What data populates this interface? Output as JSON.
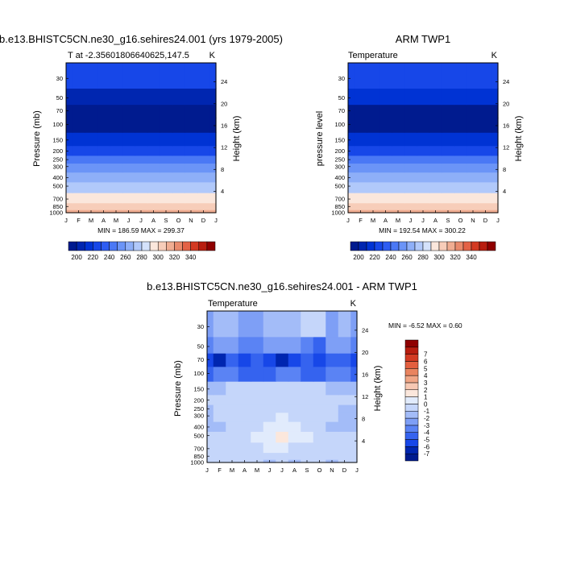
{
  "chart_data": [
    {
      "type": "heatmap",
      "title": "b.e13.BHISTC5CN.ne30_g16.sehires24.001 (yrs 1979-2005)",
      "subtitle_left": "T at -2.35601806640625,147.5",
      "units": "K",
      "ylabel": "Pressure (mb)",
      "ylabel_right": "Height (km)",
      "months": [
        "J",
        "F",
        "M",
        "A",
        "M",
        "J",
        "J",
        "A",
        "S",
        "O",
        "N",
        "D",
        "J"
      ],
      "pressure_levels": [
        1000,
        850,
        700,
        500,
        400,
        300,
        250,
        200,
        150,
        100,
        70,
        50,
        30
      ],
      "pressure_ticks": [
        "30",
        "50",
        "70",
        "100",
        "150",
        "200",
        "250",
        "300",
        "400",
        "500",
        "700",
        "850",
        "1000"
      ],
      "height_ticks_km": [
        "4",
        "8",
        "12",
        "16",
        "20",
        "24"
      ],
      "ylim": [
        1000,
        20
      ],
      "values_by_level": [
        [
          299.3,
          299.3,
          299.4,
          299.4,
          299.4,
          299.3,
          299.2,
          299.2,
          299.3,
          299.4,
          299.4,
          299.3,
          299.3
        ],
        [
          292.0,
          292.0,
          292.1,
          292.1,
          292.0,
          291.9,
          291.8,
          291.8,
          291.9,
          292.0,
          292.1,
          292.0,
          292.0
        ],
        [
          283.5,
          283.5,
          283.6,
          283.6,
          283.5,
          283.4,
          283.3,
          283.3,
          283.4,
          283.5,
          283.6,
          283.5,
          283.5
        ],
        [
          269.0,
          269.0,
          269.1,
          269.1,
          269.0,
          268.9,
          268.8,
          268.8,
          268.9,
          269.0,
          269.1,
          269.0,
          269.0
        ],
        [
          259.0,
          259.0,
          259.1,
          259.1,
          259.0,
          258.9,
          258.8,
          258.8,
          258.9,
          259.0,
          259.1,
          259.0,
          259.0
        ],
        [
          244.0,
          244.0,
          244.1,
          244.1,
          244.0,
          243.9,
          243.8,
          243.8,
          243.9,
          244.0,
          244.1,
          244.0,
          244.0
        ],
        [
          235.0,
          235.0,
          235.1,
          235.1,
          235.0,
          234.9,
          234.8,
          234.8,
          234.9,
          235.0,
          235.1,
          235.0,
          235.0
        ],
        [
          223.0,
          223.0,
          223.1,
          223.1,
          223.0,
          222.9,
          222.8,
          222.8,
          222.9,
          223.0,
          223.1,
          223.0,
          223.0
        ],
        [
          208.0,
          208.0,
          208.1,
          208.1,
          208.0,
          207.9,
          207.8,
          207.8,
          207.9,
          208.0,
          208.1,
          208.0,
          208.0
        ],
        [
          193.0,
          193.0,
          193.0,
          193.0,
          193.0,
          193.5,
          193.8,
          193.8,
          193.5,
          193.0,
          193.0,
          193.0,
          193.0
        ],
        [
          187.5,
          187.5,
          187.0,
          186.8,
          187.0,
          188.0,
          189.0,
          189.3,
          189.0,
          188.5,
          188.0,
          187.8,
          187.5
        ],
        [
          205.0,
          205.5,
          206.5,
          207.0,
          207.5,
          207.5,
          207.0,
          206.5,
          206.0,
          205.0,
          204.5,
          204.8,
          205.0
        ],
        [
          221.0,
          221.5,
          222.0,
          223.0,
          223.5,
          223.5,
          223.0,
          222.5,
          222.0,
          221.5,
          221.5,
          221.2,
          221.0
        ]
      ],
      "stats_text": "MIN = 186.59 MAX = 299.37",
      "colorbar": {
        "tick_labels": [
          "200",
          "220",
          "240",
          "260",
          "280",
          "300",
          "320",
          "340"
        ],
        "colors": [
          "#001b8f",
          "#0026b0",
          "#0033d4",
          "#1747e8",
          "#2e5df2",
          "#4a78f5",
          "#6b94f7",
          "#8eaff8",
          "#b1c9fa",
          "#d4e2fb",
          "#fbe7dc",
          "#f7cdb9",
          "#f0ad92",
          "#e98a6c",
          "#e36246",
          "#d33a22",
          "#b81d0f",
          "#8f0000"
        ]
      }
    },
    {
      "type": "heatmap",
      "title": "ARM TWP1",
      "subtitle_left": "Temperature",
      "units": "K",
      "ylabel": "pressure level",
      "ylabel_right": "Height (km)",
      "months": [
        "J",
        "F",
        "M",
        "A",
        "M",
        "J",
        "J",
        "A",
        "S",
        "O",
        "N",
        "D",
        "J"
      ],
      "pressure_levels": [
        1000,
        850,
        700,
        500,
        400,
        300,
        250,
        200,
        150,
        100,
        70,
        50,
        30
      ],
      "pressure_ticks": [
        "30",
        "50",
        "70",
        "100",
        "150",
        "200",
        "250",
        "300",
        "400",
        "500",
        "700",
        "850",
        "1000"
      ],
      "height_ticks_km": [
        "4",
        "8",
        "12",
        "16",
        "20",
        "24"
      ],
      "ylim": [
        1000,
        20
      ],
      "values_by_level": [
        [
          300.1,
          300.1,
          300.2,
          300.2,
          300.1,
          300.0,
          299.9,
          299.9,
          300.0,
          300.1,
          300.2,
          300.1,
          300.1
        ],
        [
          292.5,
          292.5,
          292.6,
          292.6,
          292.5,
          292.4,
          292.3,
          292.3,
          292.4,
          292.5,
          292.6,
          292.5,
          292.5
        ],
        [
          284.0,
          284.0,
          284.1,
          284.1,
          284.0,
          283.9,
          283.8,
          283.8,
          283.9,
          284.0,
          284.1,
          284.0,
          284.0
        ],
        [
          269.5,
          269.5,
          269.6,
          269.6,
          269.5,
          269.4,
          269.3,
          269.3,
          269.4,
          269.5,
          269.6,
          269.5,
          269.5
        ],
        [
          259.5,
          259.5,
          259.6,
          259.6,
          259.5,
          259.4,
          259.3,
          259.3,
          259.4,
          259.5,
          259.6,
          259.5,
          259.5
        ],
        [
          244.5,
          244.5,
          244.6,
          244.6,
          244.5,
          244.4,
          244.3,
          244.3,
          244.4,
          244.5,
          244.6,
          244.5,
          244.5
        ],
        [
          235.5,
          235.5,
          235.6,
          235.6,
          235.5,
          235.4,
          235.3,
          235.3,
          235.4,
          235.5,
          235.6,
          235.5,
          235.5
        ],
        [
          223.5,
          223.5,
          223.6,
          223.6,
          223.5,
          223.4,
          223.3,
          223.3,
          223.4,
          223.5,
          223.6,
          223.5,
          223.5
        ],
        [
          208.5,
          208.5,
          208.6,
          208.6,
          208.5,
          208.4,
          208.3,
          208.3,
          208.4,
          208.5,
          208.6,
          208.5,
          208.5
        ],
        [
          194.0,
          194.0,
          194.2,
          194.5,
          195.0,
          195.5,
          195.8,
          195.8,
          195.5,
          195.0,
          194.5,
          194.2,
          194.0
        ],
        [
          194.0,
          194.2,
          194.0,
          193.8,
          193.5,
          193.0,
          192.6,
          192.6,
          193.5,
          194.5,
          195.5,
          195.0,
          194.0
        ],
        [
          212.0,
          212.5,
          213.0,
          213.0,
          212.5,
          211.5,
          210.0,
          209.0,
          210.5,
          212.5,
          213.0,
          212.5,
          212.0
        ],
        [
          224.0,
          224.5,
          225.0,
          225.5,
          225.5,
          225.0,
          224.5,
          224.0,
          224.0,
          224.5,
          224.5,
          224.0,
          224.0
        ]
      ],
      "stats_text": "MIN = 192.54 MAX = 300.22",
      "colorbar": {
        "tick_labels": [
          "200",
          "220",
          "240",
          "260",
          "280",
          "300",
          "320",
          "340"
        ],
        "colors": [
          "#001b8f",
          "#0026b0",
          "#0033d4",
          "#1747e8",
          "#2e5df2",
          "#4a78f5",
          "#6b94f7",
          "#8eaff8",
          "#b1c9fa",
          "#d4e2fb",
          "#fbe7dc",
          "#f7cdb9",
          "#f0ad92",
          "#e98a6c",
          "#e36246",
          "#d33a22",
          "#b81d0f",
          "#8f0000"
        ]
      }
    },
    {
      "type": "heatmap",
      "title": "b.e13.BHISTC5CN.ne30_g16.sehires24.001 - ARM TWP1",
      "subtitle_left": "Temperature",
      "units": "K",
      "ylabel": "Pressure (mb)",
      "ylabel_right": "Height (km)",
      "months": [
        "J",
        "F",
        "M",
        "A",
        "M",
        "J",
        "J",
        "A",
        "S",
        "O",
        "N",
        "D",
        "J"
      ],
      "pressure_levels": [
        1000,
        850,
        700,
        500,
        400,
        300,
        250,
        200,
        150,
        100,
        70,
        50,
        30
      ],
      "pressure_ticks": [
        "30",
        "50",
        "70",
        "100",
        "150",
        "200",
        "250",
        "300",
        "400",
        "500",
        "700",
        "850",
        "1000"
      ],
      "height_ticks_km": [
        "4",
        "8",
        "12",
        "16",
        "20",
        "24"
      ],
      "ylim": [
        1000,
        20
      ],
      "values_by_level": [
        [
          -0.8,
          -0.9,
          -0.7,
          -0.6,
          -1.2,
          -1.5,
          -1.4,
          -1.6,
          -1.2,
          -0.8,
          -1.7,
          -1.4,
          -0.8
        ],
        [
          -0.6,
          -0.6,
          -0.5,
          -0.5,
          -0.6,
          -0.7,
          -0.7,
          -0.7,
          -0.6,
          -0.6,
          -0.6,
          -0.6,
          -0.6
        ],
        [
          -0.5,
          -1.2,
          -0.6,
          -0.5,
          -0.5,
          -0.4,
          -0.4,
          -0.5,
          -0.5,
          -0.5,
          -0.6,
          -0.5,
          -0.5
        ],
        [
          -0.6,
          -0.6,
          -0.6,
          -0.5,
          -0.3,
          0.3,
          0.5,
          0.1,
          -0.4,
          -0.6,
          -0.6,
          -0.6,
          -0.6
        ],
        [
          -1.6,
          -1.5,
          -1.2,
          -0.8,
          -0.6,
          -0.3,
          -0.1,
          -0.4,
          -0.7,
          -1.2,
          -1.5,
          -1.6,
          -1.6
        ],
        [
          -1.5,
          -1.4,
          -1.3,
          -1.2,
          -0.8,
          -0.6,
          -0.4,
          -0.6,
          -0.8,
          -1.2,
          -1.4,
          -1.5,
          -1.5
        ],
        [
          -1.5,
          -1.4,
          -1.3,
          -1.2,
          -1.0,
          -0.7,
          -0.5,
          -0.6,
          -0.9,
          -1.3,
          -1.4,
          -1.5,
          -1.5
        ],
        [
          -1.4,
          -1.3,
          -1.2,
          -1.1,
          -1.0,
          -0.8,
          -0.7,
          -0.8,
          -0.9,
          -1.1,
          -1.3,
          -1.4,
          -1.4
        ],
        [
          -1.6,
          -1.5,
          -1.4,
          -1.4,
          -1.4,
          -1.3,
          -1.2,
          -1.2,
          -1.3,
          -1.4,
          -1.5,
          -1.6,
          -1.6
        ],
        [
          -4.5,
          -4.0,
          -3.5,
          -4.5,
          -5.0,
          -4.5,
          -4.2,
          -4.2,
          -4.8,
          -4.5,
          -3.8,
          -3.5,
          -4.5
        ],
        [
          -5.5,
          -6.5,
          -5.0,
          -5.5,
          -4.5,
          -5.2,
          -6.3,
          -5.8,
          -4.8,
          -5.5,
          -4.5,
          -5.0,
          -5.5
        ],
        [
          -3.5,
          -3.0,
          -3.0,
          -4.0,
          -4.0,
          -2.5,
          -3.0,
          -2.5,
          -4.0,
          -4.5,
          -3.0,
          -3.0,
          -3.5
        ],
        [
          -2.5,
          -2.0,
          -1.5,
          -2.5,
          -2.5,
          -1.5,
          -1.5,
          -1.5,
          -0.5,
          -0.5,
          -2.5,
          -2.0,
          -2.5
        ]
      ],
      "stats_text": "MIN =  -6.52 MAX =   0.60",
      "colorbar": {
        "tick_labels": [
          "-7",
          "-6",
          "-5",
          "-4",
          "-3",
          "-2",
          "-1",
          "0",
          "1",
          "2",
          "3",
          "4",
          "5",
          "6",
          "7"
        ],
        "colors": [
          "#001b8f",
          "#0026b0",
          "#1747e8",
          "#3563ef",
          "#5a83f4",
          "#7e9ff6",
          "#a3bcf8",
          "#c5d6fa",
          "#e1ebfc",
          "#fbe7dc",
          "#f7c8b3",
          "#f0a686",
          "#e9845f",
          "#e35f3f",
          "#d33a22",
          "#b81d0f",
          "#8f0000"
        ]
      }
    }
  ]
}
